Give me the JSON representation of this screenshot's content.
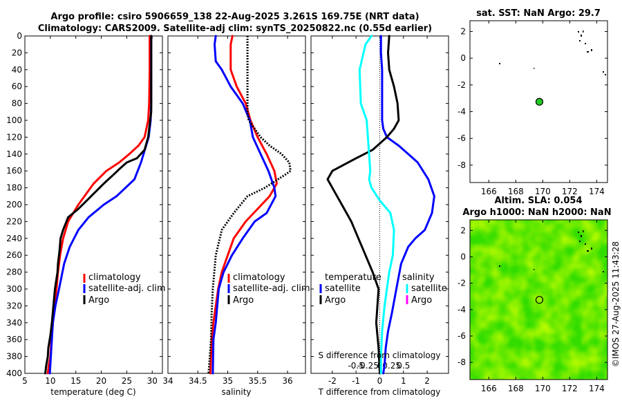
{
  "header": {
    "title_line1": "Argo profile: csiro 5906659_138 22-Aug-2025 3.261S 169.75E (NRT data)",
    "title_line2": "Climatology: CARS2009. Satellite-adj clim: synTS_20250822.nc (0.55d earlier)"
  },
  "colors": {
    "climatology": "#ff0000",
    "satellite": "#0000ff",
    "argo": "#000000",
    "satellite_salinity": "#00ffff",
    "argo_salinity": "#ff00ff",
    "float_marker": "#22cc22"
  },
  "chart_data": [
    {
      "type": "line",
      "id": "temperature",
      "xlabel": "temperature (deg C)",
      "ylabel": "",
      "xlim": [
        5,
        32
      ],
      "ylim": [
        400,
        0
      ],
      "xticks": [
        5,
        10,
        15,
        20,
        25,
        30
      ],
      "yticks": [
        0,
        20,
        40,
        60,
        80,
        100,
        120,
        140,
        160,
        180,
        200,
        220,
        240,
        260,
        280,
        300,
        320,
        340,
        360,
        380,
        400
      ],
      "legend": [
        "climatology",
        "satellite-adj. clim",
        "Argo"
      ],
      "series": [
        {
          "name": "climatology",
          "color": "red",
          "x": [
            29.5,
            29.5,
            29.4,
            29.2,
            28.5,
            27.3,
            25.5,
            23.5,
            21,
            18.5,
            15.5,
            13.5,
            12.5,
            11.9,
            11.5,
            11.2,
            10.8,
            10.5,
            10.2,
            10,
            9.7,
            9.5
          ],
          "y": [
            0,
            40,
            80,
            100,
            120,
            130,
            140,
            150,
            160,
            175,
            200,
            220,
            240,
            260,
            280,
            300,
            320,
            340,
            360,
            380,
            390,
            400
          ]
        },
        {
          "name": "satellite-adj. clim",
          "color": "blue",
          "x": [
            29.8,
            29.8,
            29.7,
            29.3,
            28.8,
            27.8,
            26.5,
            23,
            20.5,
            17.5,
            15.5,
            13.8,
            12.7,
            11.7,
            11,
            10.5,
            10.2,
            9.9
          ],
          "y": [
            0,
            80,
            100,
            120,
            130,
            150,
            170,
            190,
            200,
            215,
            230,
            250,
            270,
            300,
            320,
            340,
            370,
            400
          ]
        },
        {
          "name": "Argo",
          "color": "black",
          "x": [
            29.8,
            29.8,
            29.6,
            29.2,
            28.5,
            27,
            25,
            23.5,
            22.3,
            20.5,
            18,
            15.5,
            13.5,
            12.5,
            12,
            11.8,
            11.5,
            11.4,
            10.9,
            10.6,
            10.3,
            10,
            9.6,
            9.5,
            9.2,
            9
          ],
          "y": [
            0,
            90,
            100,
            120,
            135,
            145,
            150,
            158,
            165,
            175,
            190,
            205,
            215,
            230,
            240,
            255,
            270,
            280,
            300,
            320,
            340,
            355,
            370,
            380,
            390,
            400
          ]
        }
      ]
    },
    {
      "type": "line",
      "id": "salinity",
      "xlabel": "salinity",
      "xlim": [
        34,
        36.3
      ],
      "ylim": [
        400,
        0
      ],
      "xticks": [
        34,
        34.5,
        35,
        35.5,
        36
      ],
      "xtick_labels": [
        "34",
        "34.5",
        "35",
        "35.5",
        "36"
      ],
      "legend": [
        "climatology",
        "satellite-adj. clim",
        "Argo"
      ],
      "series": [
        {
          "name": "climatology",
          "color": "red",
          "x": [
            35.08,
            35.05,
            35.05,
            35.15,
            35.3,
            35.38,
            35.5,
            35.65,
            35.78,
            35.82,
            35.7,
            35.5,
            35.3,
            35.1,
            35,
            34.9,
            34.84,
            34.8,
            34.76,
            34.73,
            34.71
          ],
          "y": [
            0,
            10,
            40,
            60,
            80,
            100,
            120,
            140,
            160,
            175,
            190,
            205,
            220,
            240,
            260,
            280,
            300,
            320,
            340,
            360,
            400
          ]
        },
        {
          "name": "satellite-adj. clim",
          "color": "blue",
          "x": [
            34.8,
            34.78,
            34.8,
            34.9,
            35.05,
            35.25,
            35.37,
            35.42,
            35.55,
            35.68,
            35.78,
            35.8,
            35.65,
            35.45,
            35.25,
            35.07,
            34.93,
            34.85,
            34.8,
            34.76,
            34.75
          ],
          "y": [
            0,
            10,
            30,
            40,
            60,
            80,
            100,
            120,
            140,
            160,
            180,
            190,
            210,
            220,
            240,
            260,
            280,
            300,
            340,
            360,
            400
          ]
        },
        {
          "name": "Argo",
          "color": "black",
          "dash": "2,2",
          "x": [
            35.33,
            35.33,
            35.33,
            35.33,
            35.35,
            35.45,
            35.55,
            35.7,
            35.9,
            36.03,
            36.05,
            35.95,
            35.62,
            35.33,
            35.1,
            34.9,
            34.8,
            34.75,
            34.73,
            34.72,
            34.7,
            34.68
          ],
          "y": [
            0,
            50,
            70,
            90,
            100,
            110,
            120,
            130,
            140,
            150,
            160,
            165,
            180,
            190,
            210,
            230,
            260,
            300,
            330,
            360,
            380,
            400
          ]
        }
      ]
    },
    {
      "type": "line",
      "id": "difference",
      "xlabel": "T difference from climatology",
      "top_label": "S difference from climatology",
      "xlim": [
        -2.9,
        2.9
      ],
      "ylim": [
        400,
        0
      ],
      "xticks": [
        -2,
        -1,
        0,
        1,
        2
      ],
      "xtick_labels": [
        "-2",
        "-1",
        "0",
        "1",
        "2"
      ],
      "s_ticks": [
        -0.5,
        -0.25,
        0,
        0.25,
        0.5
      ],
      "s_tick_labels": [
        "-0.5",
        "-0.25",
        "0",
        "0.25",
        "0.5"
      ],
      "legend_left_title": "temperature",
      "legend_right_title": "salinity",
      "legend_left": [
        "satellite",
        "Argo"
      ],
      "legend_right": [
        "satellite",
        "Argo"
      ],
      "series": [
        {
          "name": "T satellite",
          "color": "blue",
          "x": [
            0.05,
            0.05,
            0.1,
            0.1,
            0.1,
            0.15,
            0.3,
            0.8,
            1.2,
            1.6,
            2.05,
            2.3,
            2.2,
            1.9,
            1.5,
            1.2,
            0.9,
            0.7,
            0.5,
            0.35,
            0.25,
            0.2,
            0.15
          ],
          "y": [
            0,
            20,
            40,
            80,
            100,
            110,
            120,
            130,
            140,
            150,
            170,
            190,
            210,
            230,
            240,
            250,
            270,
            300,
            330,
            350,
            370,
            390,
            400
          ]
        },
        {
          "name": "T Argo",
          "color": "black",
          "x": [
            0.4,
            0.35,
            0.4,
            0.6,
            0.75,
            0.8,
            0.6,
            0.3,
            -0.3,
            -1,
            -2,
            -2.2,
            -1.9,
            -1.6,
            -1.4,
            -1.2,
            -0.9,
            -0.6,
            -0.3,
            -0.05,
            -0.15,
            -0.05,
            0
          ],
          "y": [
            0,
            20,
            40,
            60,
            80,
            100,
            110,
            120,
            135,
            145,
            160,
            170,
            185,
            200,
            210,
            220,
            240,
            260,
            280,
            300,
            340,
            370,
            400
          ]
        },
        {
          "name": "S satellite",
          "color": "cyan",
          "x": [
            -0.35,
            -0.6,
            -0.85,
            -0.8,
            -0.55,
            -0.5,
            -0.45,
            -0.4,
            -0.45,
            -0.35,
            0,
            0.45,
            0.6,
            0.55,
            0.4,
            0.3,
            0.2,
            0.1,
            0.05,
            0.05
          ],
          "y": [
            0,
            10,
            40,
            80,
            100,
            120,
            140,
            160,
            170,
            180,
            195,
            210,
            230,
            260,
            280,
            300,
            320,
            350,
            380,
            400
          ]
        }
      ]
    },
    {
      "type": "scatter",
      "id": "sst_map",
      "title": "sat. SST: NaN Argo: 29.7",
      "xlim": [
        164.6,
        174.8
      ],
      "ylim": [
        -9.3,
        2.8
      ],
      "xticks": [
        166,
        168,
        170,
        172,
        174
      ],
      "yticks": [
        -8,
        -6,
        -4,
        -2,
        0,
        2
      ],
      "float": {
        "lon": 169.75,
        "lat": -3.261
      }
    },
    {
      "type": "heatmap",
      "id": "sla_map",
      "title_line1": "Altim. SLA: 0.054",
      "title_line2": "Argo h1000: NaN h2000: NaN",
      "xlim": [
        164.6,
        174.8
      ],
      "ylim": [
        -9.3,
        2.8
      ],
      "xticks": [
        166,
        168,
        170,
        172,
        174
      ],
      "yticks": [
        -8,
        -6,
        -4,
        -2,
        0,
        2
      ],
      "float": {
        "lon": 169.75,
        "lat": -3.261
      }
    }
  ],
  "footer": {
    "credit": "©IMOS 27-Aug-2025 11:43:28"
  }
}
